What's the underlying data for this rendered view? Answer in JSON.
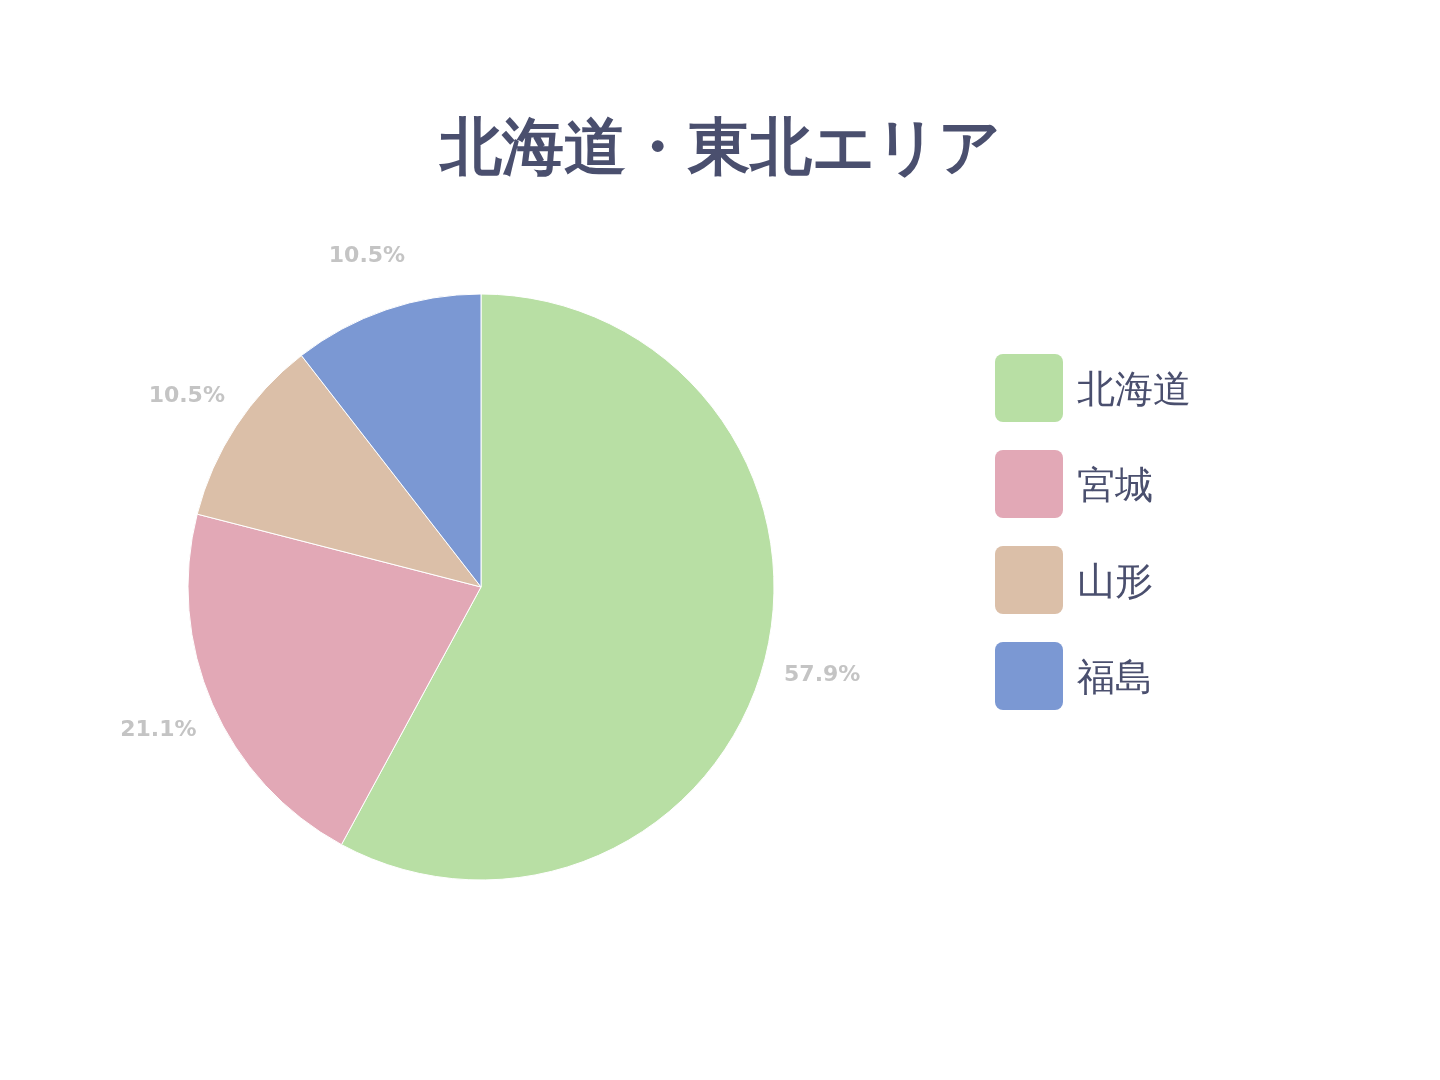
{
  "chart_data": {
    "type": "pie",
    "title": "北海道・東北エリア",
    "categories": [
      "北海道",
      "宮城",
      "山形",
      "福島"
    ],
    "values": [
      57.9,
      21.1,
      10.5,
      10.5
    ],
    "colors": [
      "#b8dfa4",
      "#e2a8b6",
      "#dbbfa8",
      "#7b98d3"
    ],
    "value_labels": [
      "57.9%",
      "21.1%",
      "10.5%",
      "10.5%"
    ],
    "legend": "right"
  }
}
